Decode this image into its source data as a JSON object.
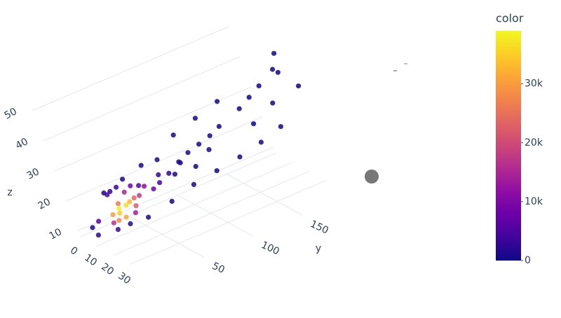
{
  "chart_data": {
    "type": "scatter3d",
    "x": [
      36,
      38,
      40,
      42,
      39,
      41,
      44,
      45,
      43,
      40,
      37,
      34,
      36,
      33,
      32,
      30,
      30,
      28,
      26,
      22,
      30,
      32,
      28,
      27,
      25,
      24,
      15,
      10,
      5,
      28,
      23,
      36,
      7,
      6,
      22,
      4,
      20,
      10,
      25,
      8,
      14,
      18,
      21,
      19,
      20,
      9,
      16,
      12,
      17,
      18,
      11,
      14,
      11,
      16,
      15,
      13,
      10,
      12,
      13,
      14,
      15
    ],
    "y": [
      140,
      150,
      160,
      175,
      185,
      180,
      190,
      160,
      140,
      120,
      170,
      150,
      100,
      120,
      110,
      100,
      130,
      80,
      110,
      90,
      90,
      80,
      60,
      80,
      70,
      60,
      60,
      45,
      30,
      90,
      40,
      100,
      30,
      15,
      55,
      10,
      70,
      30,
      75,
      8,
      20,
      28,
      65,
      35,
      50,
      38,
      50,
      40,
      40,
      45,
      22,
      45,
      32,
      42,
      38,
      28,
      25,
      30,
      25,
      35,
      30
    ],
    "z": [
      42,
      45,
      48,
      52,
      55,
      50,
      45,
      36,
      33,
      30,
      40,
      35,
      27,
      38,
      36,
      34,
      44,
      30,
      40,
      36,
      28,
      24,
      20,
      30,
      27,
      25,
      28,
      24,
      20,
      32,
      16,
      34,
      20,
      13,
      23,
      11,
      30,
      22,
      26,
      10,
      12,
      14,
      26,
      17,
      24,
      22,
      23,
      21,
      18,
      21,
      13,
      23,
      18,
      20,
      19,
      16,
      15,
      17,
      14,
      18,
      15
    ],
    "values": [
      120,
      80,
      40,
      10,
      5,
      8,
      5,
      5,
      20,
      60,
      30,
      100,
      150,
      300,
      400,
      700,
      60,
      1000,
      90,
      150,
      450,
      300,
      600,
      1500,
      2500,
      4000,
      600,
      800,
      400,
      1200,
      900,
      150,
      5000,
      6000,
      8000,
      1500,
      900,
      2500,
      1200,
      2500,
      3000,
      2000,
      2800,
      14000,
      12000,
      3500,
      5500,
      15000,
      22000,
      18000,
      17000,
      9000,
      26000,
      24000,
      33000,
      35000,
      30000,
      38000,
      28000,
      36000,
      31000
    ],
    "xticks": [
      0,
      10,
      20,
      30
    ],
    "yticks": [
      50,
      100,
      150
    ],
    "zticks": [
      10,
      20,
      30,
      40,
      50
    ],
    "xlim": [
      0,
      45
    ],
    "ylim": [
      0,
      200
    ],
    "zlim": [
      8,
      58
    ],
    "y_label": "y",
    "z_label": "z",
    "colorbar_title": "color",
    "clim": [
      0,
      39000
    ],
    "cticks": [
      0,
      {
        "value": 10000,
        "label": "10k"
      },
      {
        "value": 20000,
        "label": "20k"
      },
      {
        "value": 30000,
        "label": "30k"
      }
    ],
    "colorscale": [
      "#0d0887",
      "#41049d",
      "#6a00a8",
      "#8f0da4",
      "#b12a90",
      "#cc4778",
      "#e16462",
      "#f2844b",
      "#fca636",
      "#fcce25",
      "#f0f921"
    ],
    "grid": true
  }
}
